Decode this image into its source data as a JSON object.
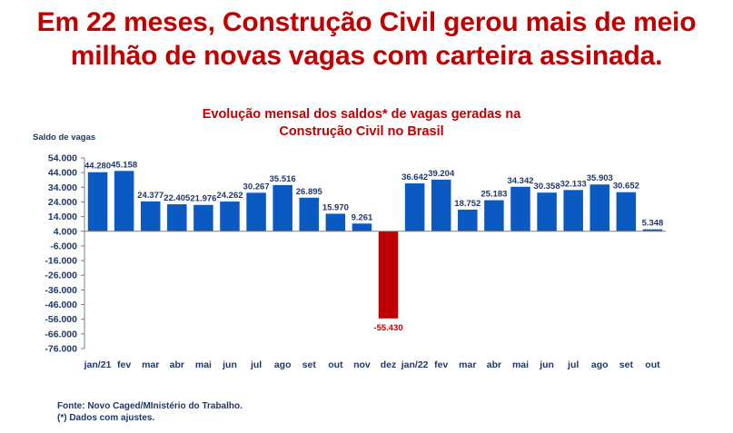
{
  "headline": {
    "line1": "Em 22 meses, Construção Civil gerou mais de meio",
    "line2": "milhão de novas vagas com carteira assinada."
  },
  "chart_data": {
    "type": "bar",
    "title_line1": "Evolução mensal dos saldos* de vagas geradas  na",
    "title_line2": "Construção Civil no Brasil",
    "ylabel": "Saldo de vagas",
    "xlabel": "",
    "ylim": [
      -76000,
      54000
    ],
    "yticks": [
      54000,
      44000,
      34000,
      24000,
      14000,
      4000,
      -6000,
      -16000,
      -26000,
      -36000,
      -46000,
      -56000,
      -66000,
      -76000
    ],
    "ytick_labels": [
      "54.000",
      "44.000",
      "34.000",
      "24.000",
      "14.000",
      "4.000",
      "-6.000",
      "-16.000",
      "-26.000",
      "-36.000",
      "-46.000",
      "-56.000",
      "-66.000",
      "-76.000"
    ],
    "categories": [
      "jan/21",
      "fev",
      "mar",
      "abr",
      "mai",
      "jun",
      "jul",
      "ago",
      "set",
      "out",
      "nov",
      "dez",
      "jan/22",
      "fev",
      "mar",
      "abr",
      "mai",
      "jun",
      "jul",
      "ago",
      "set",
      "out"
    ],
    "values": [
      44280,
      45158,
      24377,
      22405,
      21976,
      24262,
      30267,
      35516,
      26895,
      15970,
      9261,
      -55430,
      36642,
      39204,
      18752,
      25183,
      34342,
      30358,
      32133,
      35903,
      30652,
      5348
    ],
    "value_labels": [
      "44.280",
      "45.158",
      "24.377",
      "22.405",
      "21.976",
      "24.262",
      "30.267",
      "35.516",
      "26.895",
      "15.970",
      "9.261",
      "-55.430",
      "36.642",
      "39.204",
      "18.752",
      "25.183",
      "34.342",
      "30.358",
      "32.133",
      "35.903",
      "30.652",
      "5.348"
    ],
    "colors": {
      "positive": "#0a5ac2",
      "negative": "#c00000",
      "text": "#1f3864",
      "axis": "#7f7f7f"
    },
    "grid": false
  },
  "notes": {
    "source": "Fonte:  Novo Caged/MInistério do Trabalho.",
    "footnote": "(*) Dados com ajustes."
  }
}
